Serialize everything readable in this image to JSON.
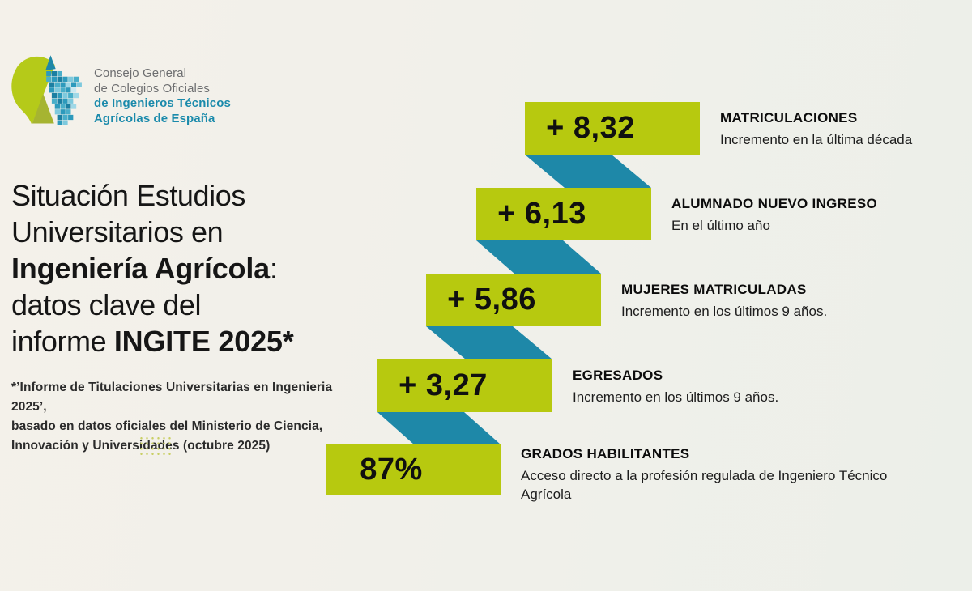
{
  "logo": {
    "line1": "Consejo General",
    "line2": "de Colegios Oficiales",
    "line3": "de Ingenieros Técnicos",
    "line4": "Agrícolas de España"
  },
  "title": {
    "line1": "Situación Estudios",
    "line2": "Universitarios en",
    "line3_bold": "Ingeniería Agrícola",
    "line3_suffix": ":",
    "line4": "datos clave del",
    "line5_prefix": "informe ",
    "line5_bold": "INGITE 2025*"
  },
  "footnote": {
    "text": "*’Informe de Titulaciones Universitarias en Ingenieria 2025’,\nbasado en datos oficiales del Ministerio de Ciencia,\nInnovación y Universidades (octubre 2025)"
  },
  "steps": [
    {
      "value": "+ 8,32",
      "heading": "MATRICULACIONES",
      "description": "Incremento en la última década"
    },
    {
      "value": "+ 6,13",
      "heading": "ALUMNADO NUEVO INGRESO",
      "description": "En el último año"
    },
    {
      "value": "+ 5,86",
      "heading": "MUJERES MATRICULADAS",
      "description": "Incremento en los últimos 9 años."
    },
    {
      "value": "+ 3,27",
      "heading": "EGRESADOS",
      "description": "Incremento en los últimos 9 años."
    },
    {
      "value": "87%",
      "heading": "GRADOS HABILITANTES",
      "description": "Acceso directo a la profesión regulada de Ingeniero Técnico Agrícola"
    }
  ],
  "colors": {
    "green": "#b7c90f",
    "teal": "#1e88a8",
    "logo_teal": "#1a8aab",
    "logo_gray": "#6d6e70",
    "background_left": "#f4f1ea",
    "background_right": "#ecefe9",
    "dots": "#c9cf66"
  },
  "chart_data": {
    "type": "bar",
    "title": "Situación Estudios Universitarios en Ingeniería Agrícola: datos clave del informe INGITE 2025*",
    "categories": [
      "MATRICULACIONES",
      "ALUMNADO NUEVO INGRESO",
      "MUJERES MATRICULADAS",
      "EGRESADOS",
      "GRADOS HABILITANTES"
    ],
    "values": [
      8.32,
      6.13,
      5.86,
      3.27,
      87
    ],
    "value_labels": [
      "+ 8,32",
      "+ 6,13",
      "+ 5,86",
      "+ 3,27",
      "87%"
    ],
    "annotations": [
      "Incremento en la última década",
      "En el último año",
      "Incremento en los últimos 9 años.",
      "Incremento en los últimos 9 años.",
      "Acceso directo a la profesión regulada de Ingeniero Técnico Agrícola"
    ],
    "legend_position": "none",
    "grid": false,
    "layout": "descending-ribbon-staircase"
  }
}
